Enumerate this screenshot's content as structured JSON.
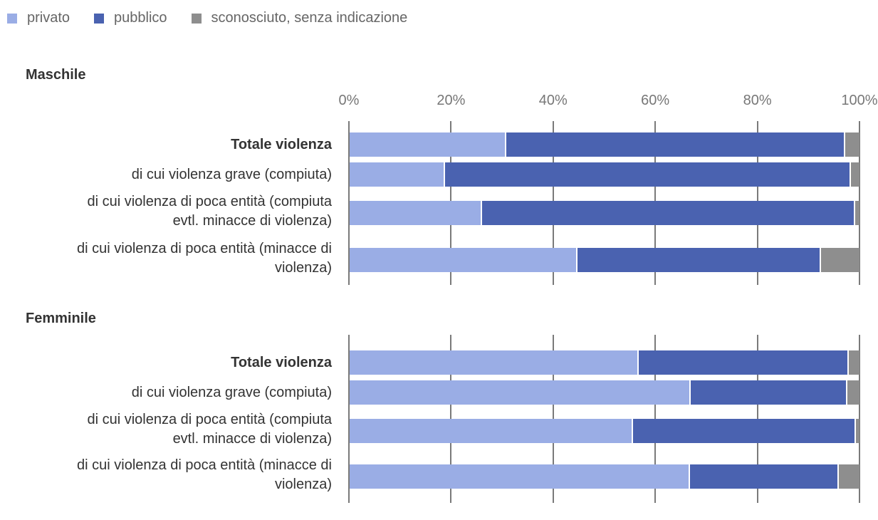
{
  "chart_data": [
    {
      "type": "bar",
      "orientation": "horizontal",
      "stacked": "percent",
      "title": "Maschile",
      "categories": [
        "Totale violenza",
        "di cui violenza grave (compiuta)",
        "di cui violenza di poca entità (compiuta evtl. minacce di violenza)",
        "di cui violenza di poca entità (minacce di violenza)"
      ],
      "series": [
        {
          "name": "privato",
          "color": "#9aade5",
          "values": [
            30.5,
            18.5,
            25.8,
            44.5
          ]
        },
        {
          "name": "pubblico",
          "color": "#4a62b0",
          "values": [
            66.5,
            79.6,
            73.1,
            47.7
          ]
        },
        {
          "name": "sconosciuto, senza indicazione",
          "color": "#8e8e8e",
          "values": [
            3.0,
            1.9,
            1.1,
            7.8
          ]
        }
      ],
      "xlim": [
        0,
        100
      ],
      "xticks": [
        "0%",
        "20%",
        "40%",
        "60%",
        "80%",
        "100%"
      ],
      "grid": true,
      "legend": "top-left"
    },
    {
      "type": "bar",
      "orientation": "horizontal",
      "stacked": "percent",
      "title": "Femminile",
      "categories": [
        "Totale violenza",
        "di cui violenza grave (compiuta)",
        "di cui violenza di poca entità (compiuta evtl. minacce di violenza)",
        "di cui violenza di poca entità (minacce di violenza)"
      ],
      "series": [
        {
          "name": "privato",
          "color": "#9aade5",
          "values": [
            56.5,
            66.6,
            55.4,
            66.5
          ]
        },
        {
          "name": "pubblico",
          "color": "#4a62b0",
          "values": [
            41.1,
            30.7,
            43.6,
            29.2
          ]
        },
        {
          "name": "sconosciuto, senza indicazione",
          "color": "#8e8e8e",
          "values": [
            2.4,
            2.7,
            1.0,
            4.3
          ]
        }
      ],
      "xlim": [
        0,
        100
      ],
      "grid": true
    }
  ],
  "legend": [
    {
      "label": "privato",
      "color": "#9aade5"
    },
    {
      "label": "pubblico",
      "color": "#4a62b0"
    },
    {
      "label": "sconosciuto, senza indicazione",
      "color": "#8e8e8e"
    }
  ],
  "labels": {
    "row0": "Totale violenza",
    "row1": "di cui violenza grave (compiuta)",
    "row2a": "di cui violenza di poca entità (compiuta",
    "row2b": "evtl. minacce di violenza)",
    "row3a": "di cui violenza di poca entità (minacce di",
    "row3b": "violenza)"
  }
}
